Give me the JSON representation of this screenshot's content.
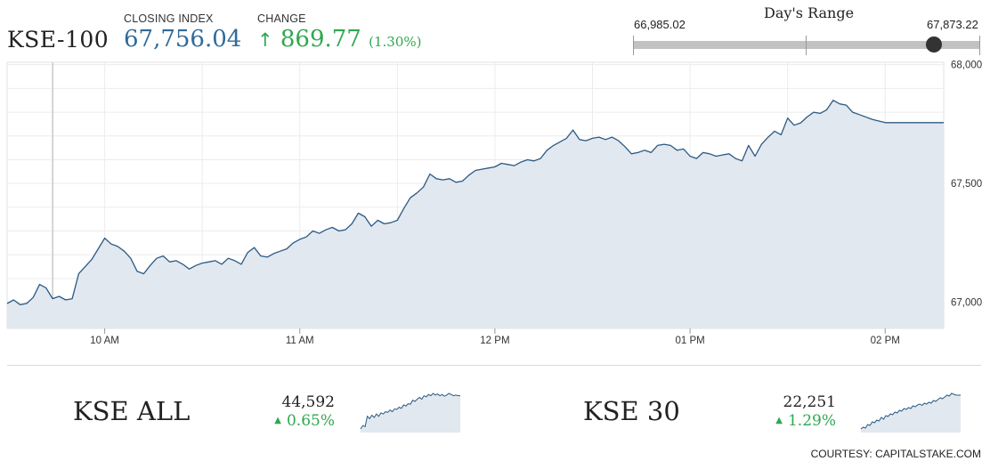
{
  "header": {
    "index_name": "KSE-100",
    "closing_label": "CLOSING INDEX",
    "closing_value": "67,756.04",
    "change_label": "CHANGE",
    "change_icon": "arrow-up-icon",
    "change_value": "869.77",
    "change_percent": "(1.30%)",
    "up_color": "#2ea84f",
    "close_color": "#2f6b9a"
  },
  "days_range": {
    "title": "Day's Range",
    "low": "66,985.02",
    "high": "67,873.22",
    "current_fraction": 0.869
  },
  "chart_data": {
    "type": "area",
    "title": "",
    "xlabel": "",
    "ylabel": "",
    "x_ticks": [
      "10 AM",
      "11 AM",
      "12 PM",
      "01 PM",
      "02 PM"
    ],
    "y_ticks": [
      "68,000",
      "67,500",
      "67,000"
    ],
    "ylim": [
      66890,
      68010
    ],
    "x_unit": "minutes after 9:30",
    "xlim": [
      0,
      288
    ],
    "grid": true,
    "line_color": "#2c5a84",
    "fill_color": "#e1e8ef",
    "series": [
      {
        "values": [
          [
            0,
            66995
          ],
          [
            2,
            67010
          ],
          [
            4,
            66990
          ],
          [
            6,
            66995
          ],
          [
            8,
            67020
          ],
          [
            10,
            67075
          ],
          [
            12,
            67060
          ],
          [
            14,
            67015
          ],
          [
            16,
            67025
          ],
          [
            18,
            67010
          ],
          [
            20,
            67015
          ],
          [
            22,
            67120
          ],
          [
            24,
            67150
          ],
          [
            26,
            67180
          ],
          [
            28,
            67225
          ],
          [
            30,
            67270
          ],
          [
            32,
            67245
          ],
          [
            34,
            67235
          ],
          [
            36,
            67215
          ],
          [
            38,
            67185
          ],
          [
            40,
            67130
          ],
          [
            42,
            67120
          ],
          [
            44,
            67155
          ],
          [
            46,
            67185
          ],
          [
            48,
            67195
          ],
          [
            50,
            67170
          ],
          [
            52,
            67175
          ],
          [
            54,
            67160
          ],
          [
            56,
            67140
          ],
          [
            58,
            67155
          ],
          [
            60,
            67165
          ],
          [
            62,
            67170
          ],
          [
            64,
            67175
          ],
          [
            66,
            67160
          ],
          [
            68,
            67185
          ],
          [
            70,
            67175
          ],
          [
            72,
            67160
          ],
          [
            74,
            67210
          ],
          [
            76,
            67230
          ],
          [
            78,
            67195
          ],
          [
            80,
            67190
          ],
          [
            82,
            67205
          ],
          [
            84,
            67215
          ],
          [
            86,
            67225
          ],
          [
            88,
            67250
          ],
          [
            90,
            67265
          ],
          [
            92,
            67275
          ],
          [
            94,
            67300
          ],
          [
            96,
            67290
          ],
          [
            98,
            67305
          ],
          [
            100,
            67315
          ],
          [
            102,
            67300
          ],
          [
            104,
            67305
          ],
          [
            106,
            67330
          ],
          [
            108,
            67375
          ],
          [
            110,
            67360
          ],
          [
            112,
            67320
          ],
          [
            114,
            67345
          ],
          [
            116,
            67330
          ],
          [
            118,
            67335
          ],
          [
            120,
            67345
          ],
          [
            122,
            67395
          ],
          [
            124,
            67440
          ],
          [
            126,
            67460
          ],
          [
            128,
            67485
          ],
          [
            130,
            67540
          ],
          [
            132,
            67520
          ],
          [
            134,
            67515
          ],
          [
            136,
            67520
          ],
          [
            138,
            67505
          ],
          [
            140,
            67510
          ],
          [
            142,
            67535
          ],
          [
            144,
            67555
          ],
          [
            146,
            67560
          ],
          [
            148,
            67565
          ],
          [
            150,
            67570
          ],
          [
            152,
            67585
          ],
          [
            154,
            67580
          ],
          [
            156,
            67575
          ],
          [
            158,
            67590
          ],
          [
            160,
            67600
          ],
          [
            162,
            67595
          ],
          [
            164,
            67605
          ],
          [
            166,
            67640
          ],
          [
            168,
            67660
          ],
          [
            170,
            67675
          ],
          [
            172,
            67690
          ],
          [
            174,
            67725
          ],
          [
            176,
            67685
          ],
          [
            178,
            67680
          ],
          [
            180,
            67690
          ],
          [
            182,
            67695
          ],
          [
            184,
            67685
          ],
          [
            186,
            67695
          ],
          [
            188,
            67680
          ],
          [
            190,
            67655
          ],
          [
            192,
            67625
          ],
          [
            194,
            67630
          ],
          [
            196,
            67640
          ],
          [
            198,
            67630
          ],
          [
            200,
            67660
          ],
          [
            202,
            67665
          ],
          [
            204,
            67660
          ],
          [
            206,
            67640
          ],
          [
            208,
            67645
          ],
          [
            210,
            67615
          ],
          [
            212,
            67605
          ],
          [
            214,
            67630
          ],
          [
            216,
            67625
          ],
          [
            218,
            67615
          ],
          [
            220,
            67620
          ],
          [
            222,
            67625
          ],
          [
            224,
            67605
          ],
          [
            226,
            67595
          ],
          [
            228,
            67660
          ],
          [
            230,
            67615
          ],
          [
            232,
            67665
          ],
          [
            234,
            67695
          ],
          [
            236,
            67720
          ],
          [
            238,
            67705
          ],
          [
            240,
            67775
          ],
          [
            242,
            67745
          ],
          [
            244,
            67755
          ],
          [
            246,
            67780
          ],
          [
            248,
            67800
          ],
          [
            250,
            67795
          ],
          [
            252,
            67810
          ],
          [
            254,
            67850
          ],
          [
            256,
            67835
          ],
          [
            258,
            67830
          ],
          [
            260,
            67800
          ],
          [
            262,
            67790
          ],
          [
            266,
            67770
          ],
          [
            270,
            67756
          ],
          [
            288,
            67756
          ]
        ]
      }
    ]
  },
  "sub_indices": [
    {
      "name": "KSE ALL",
      "value": "44,592",
      "change_icon": "triangle-up-icon",
      "change": "0.65%"
    },
    {
      "name": "KSE 30",
      "value": "22,251",
      "change_icon": "triangle-up-icon",
      "change": "1.29%"
    }
  ],
  "courtesy": "COURTESY: CAPITALSTAKE.COM"
}
